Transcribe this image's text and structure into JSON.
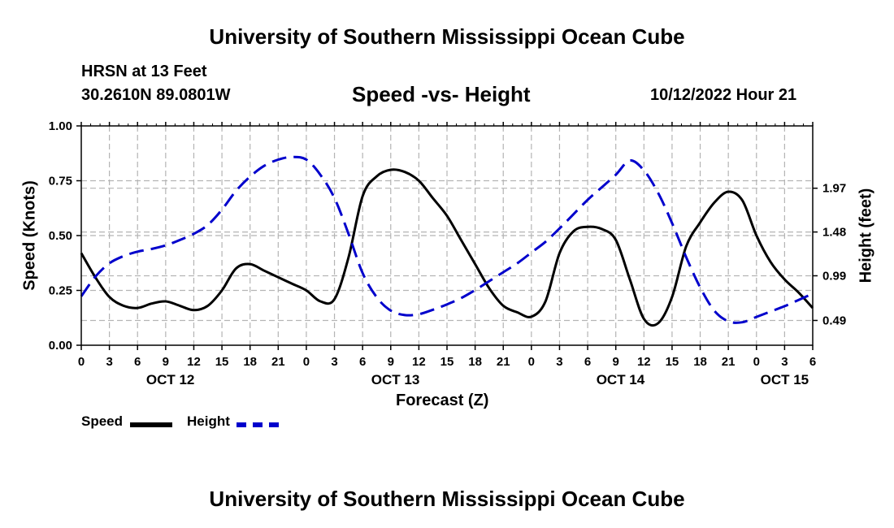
{
  "header": {
    "title": "University of Southern Mississippi Ocean Cube",
    "station": "HRSN at 13 Feet",
    "coordinates": "30.2610N  89.0801W",
    "subtitle": "Speed -vs- Height",
    "datetime": "10/12/2022 Hour 21"
  },
  "footer": {
    "title": "University of Southern Mississippi Ocean Cube"
  },
  "legend": {
    "speed_label": "Speed",
    "height_label": "Height"
  },
  "colors": {
    "speed": "#000000",
    "height": "#0000cc",
    "grid": "#b4b4b4"
  },
  "chart_data": {
    "type": "line",
    "title": "Speed -vs- Height",
    "xlabel": "Forecast (Z)",
    "ylabel": "Speed (Knots)",
    "y2label": "Height (feet)",
    "x_unit": "hours since OCT 12 00Z",
    "xlim": [
      0,
      78
    ],
    "ylim": [
      0,
      1.0
    ],
    "y2lim": [
      0.2125,
      2.6675
    ],
    "x_ticks": [
      0,
      3,
      6,
      9,
      12,
      15,
      18,
      21,
      24,
      27,
      30,
      33,
      36,
      39,
      42,
      45,
      48,
      51,
      54,
      57,
      60,
      63,
      66,
      69,
      72,
      75,
      78
    ],
    "x_tick_labels": [
      "0",
      "3",
      "6",
      "9",
      "12",
      "15",
      "18",
      "21",
      "0",
      "3",
      "6",
      "9",
      "12",
      "15",
      "18",
      "21",
      "0",
      "3",
      "6",
      "9",
      "12",
      "15",
      "18",
      "21",
      "0",
      "3",
      "6"
    ],
    "date_labels": [
      {
        "x": 9.5,
        "label": "OCT 12"
      },
      {
        "x": 33.5,
        "label": "OCT 13"
      },
      {
        "x": 57.5,
        "label": "OCT 14"
      },
      {
        "x": 75,
        "label": "OCT 15"
      }
    ],
    "y_ticks": [
      0.0,
      0.25,
      0.5,
      0.75,
      1.0
    ],
    "y_tick_labels": [
      "0.00",
      "0.25",
      "0.50",
      "0.75",
      "1.00"
    ],
    "y2_ticks": [
      0.49,
      0.99,
      1.48,
      1.97
    ],
    "y2_tick_labels": [
      "0.49",
      "0.99",
      "1.48",
      "1.97"
    ],
    "series": [
      {
        "name": "Speed",
        "axis": "left",
        "x": [
          0,
          1.5,
          3,
          4.5,
          6,
          7.5,
          9,
          10.5,
          12,
          13.5,
          15,
          16.5,
          18,
          19.5,
          21,
          22.5,
          24,
          25.5,
          27,
          28.5,
          30,
          31.5,
          33,
          34.5,
          36,
          37.5,
          39,
          40.5,
          42,
          43.5,
          45,
          46.5,
          48,
          49.5,
          51,
          52.5,
          54,
          55.5,
          57,
          58.5,
          60,
          61.5,
          63,
          64.5,
          66,
          67.5,
          69,
          70.5,
          72,
          73.5,
          75,
          76.5,
          78
        ],
        "values": [
          0.42,
          0.31,
          0.22,
          0.18,
          0.17,
          0.19,
          0.2,
          0.18,
          0.16,
          0.18,
          0.25,
          0.35,
          0.37,
          0.34,
          0.31,
          0.28,
          0.25,
          0.2,
          0.21,
          0.4,
          0.68,
          0.77,
          0.8,
          0.79,
          0.75,
          0.67,
          0.59,
          0.48,
          0.37,
          0.26,
          0.18,
          0.15,
          0.13,
          0.2,
          0.42,
          0.52,
          0.54,
          0.53,
          0.48,
          0.3,
          0.12,
          0.1,
          0.22,
          0.45,
          0.56,
          0.65,
          0.7,
          0.66,
          0.5,
          0.38,
          0.3,
          0.24,
          0.17
        ]
      },
      {
        "name": "Height",
        "axis": "right",
        "x": [
          0,
          1.5,
          3,
          4.5,
          6,
          7.5,
          9,
          10.5,
          12,
          13.5,
          15,
          16.5,
          18,
          19.5,
          21,
          22.5,
          24,
          25.5,
          27,
          28.5,
          30,
          31.5,
          33,
          34.5,
          36,
          37.5,
          39,
          40.5,
          42,
          43.5,
          45,
          46.5,
          48,
          49.5,
          51,
          52.5,
          54,
          55.5,
          57,
          58.5,
          60,
          61.5,
          63,
          64.5,
          66,
          67.5,
          69,
          70.5,
          72,
          73.5,
          75,
          76.5,
          78
        ],
        "values": [
          0.76,
          0.98,
          1.13,
          1.21,
          1.26,
          1.29,
          1.33,
          1.39,
          1.46,
          1.56,
          1.73,
          1.94,
          2.1,
          2.22,
          2.29,
          2.32,
          2.29,
          2.12,
          1.86,
          1.46,
          1.02,
          0.75,
          0.6,
          0.55,
          0.56,
          0.61,
          0.67,
          0.74,
          0.83,
          0.93,
          1.03,
          1.13,
          1.25,
          1.37,
          1.52,
          1.68,
          1.84,
          1.98,
          2.12,
          2.28,
          2.17,
          1.92,
          1.58,
          1.2,
          0.86,
          0.6,
          0.48,
          0.47,
          0.53,
          0.59,
          0.65,
          0.72,
          0.79
        ]
      }
    ]
  }
}
